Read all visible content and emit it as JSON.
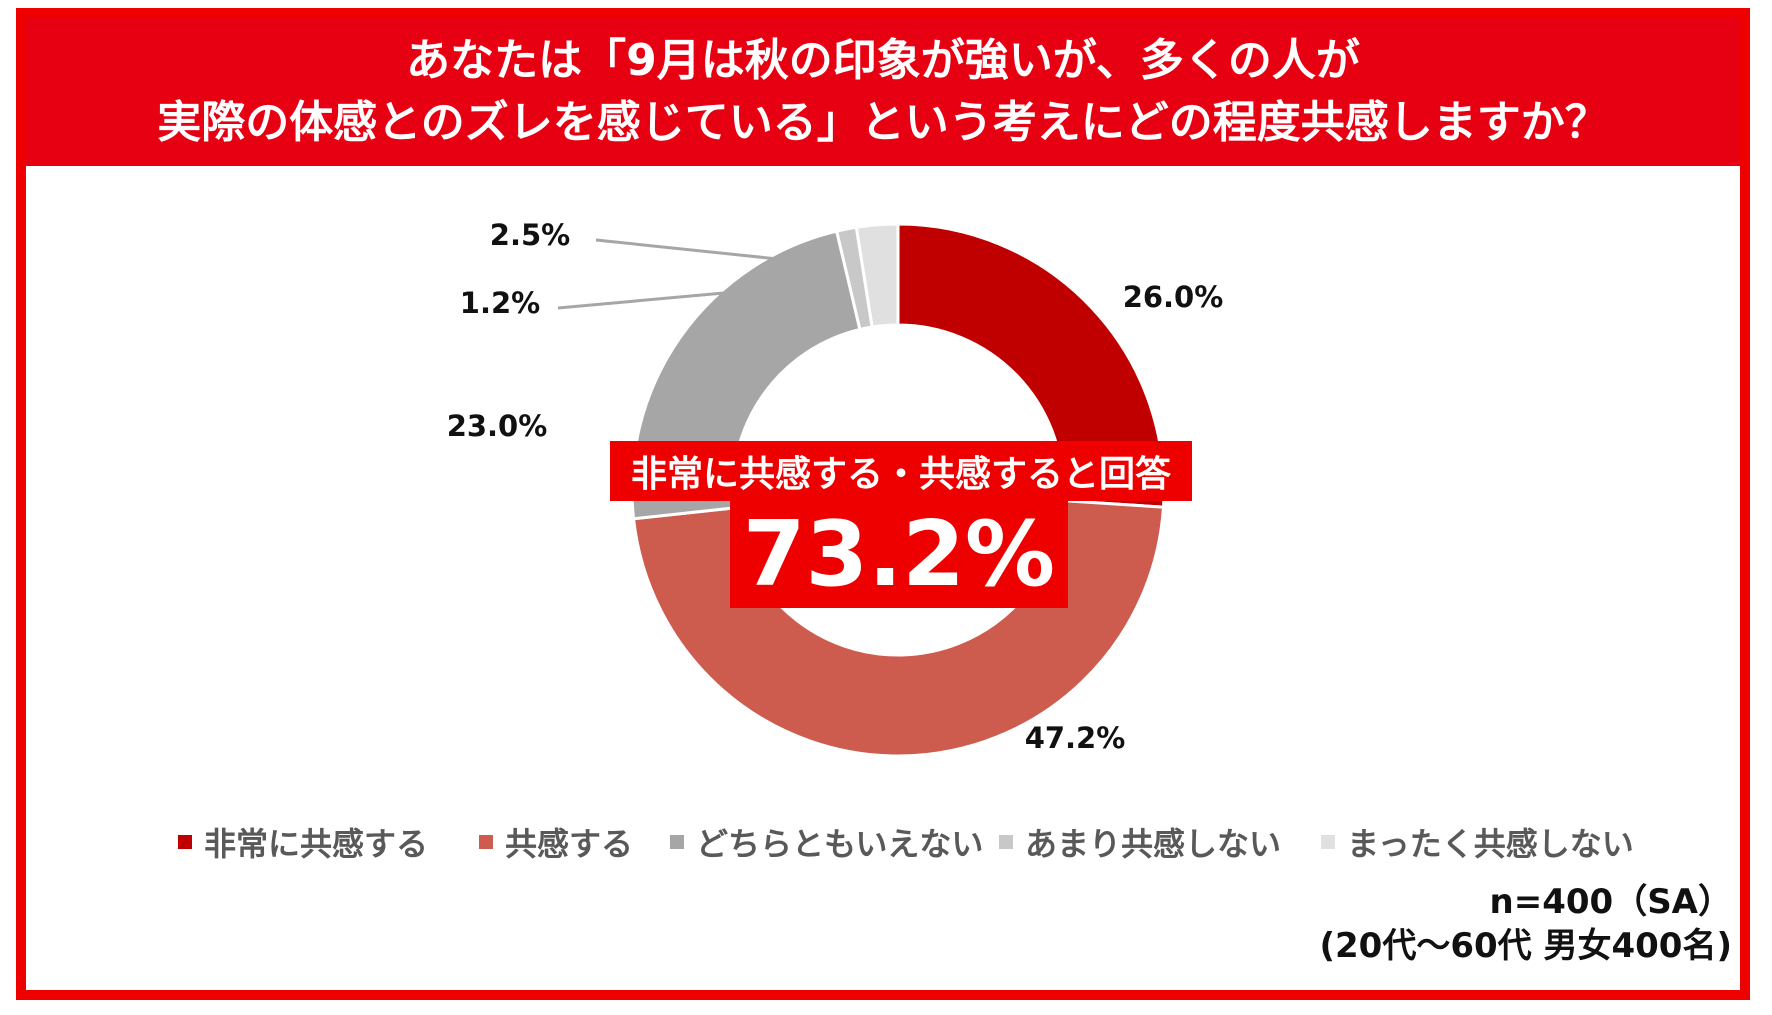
{
  "title": {
    "line1": "あなたは「9月は秋の印象が強いが、多くの人が",
    "line2": "実際の体感とのズレを感じている」という考えにどの程度共感しますか？"
  },
  "chart_data": {
    "type": "pie",
    "donut": true,
    "categories": [
      "非常に共感する",
      "共感する",
      "どちらともいえない",
      "あまり共感しない",
      "まったく共感しない"
    ],
    "values": [
      26.0,
      47.2,
      23.0,
      1.2,
      2.5
    ],
    "labels": [
      "26.0%",
      "47.2%",
      "23.0%",
      "1.2%",
      "2.5%"
    ],
    "colors": [
      "#c00000",
      "#cd5c4f",
      "#a6a6a6",
      "#c8c8c8",
      "#e0e0e0"
    ],
    "legend_position": "bottom"
  },
  "callout": {
    "label": "非常に共感する・共感すると回答",
    "value": "73.2%"
  },
  "note": {
    "line1": "n=400（SA）",
    "line2": "(20代～60代 男女400名)"
  }
}
